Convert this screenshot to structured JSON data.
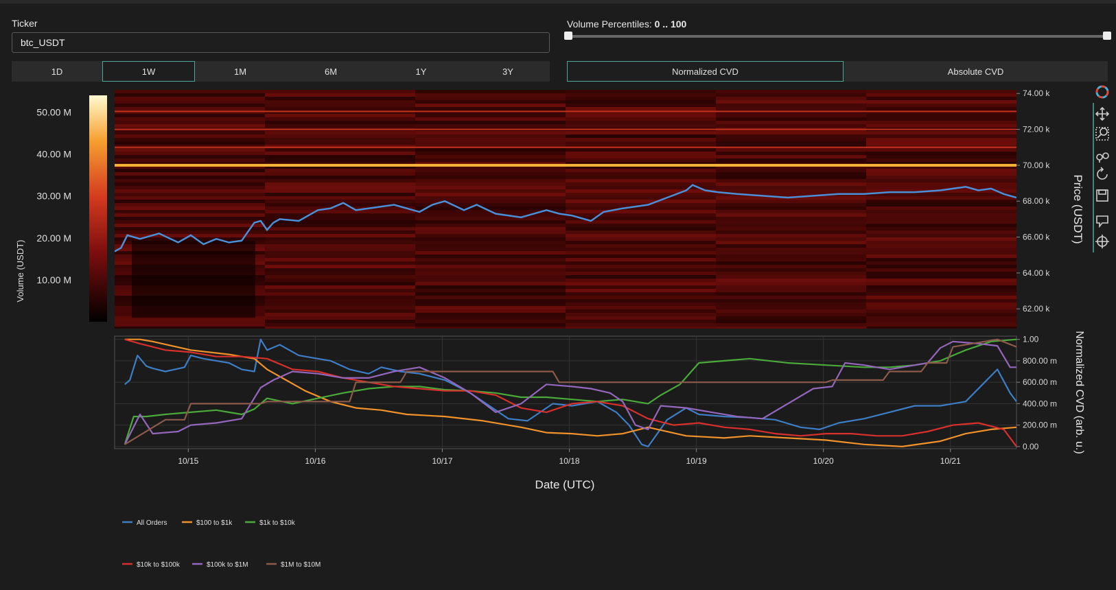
{
  "controls": {
    "ticker_label": "Ticker",
    "ticker_value": "btc_USDT",
    "percentile_label": "Volume Percentiles:",
    "percentile_value": "0 .. 100",
    "percentile_range": [
      0,
      100
    ],
    "timeframes": [
      "1D",
      "1W",
      "1M",
      "6M",
      "1Y",
      "3Y"
    ],
    "active_timeframe": "1W",
    "cvd_modes": [
      "Normalized CVD",
      "Absolute CVD"
    ],
    "active_cvd_mode": "Normalized CVD"
  },
  "modebar": [
    "plotly-logo-icon",
    "pan-icon",
    "zoom-icon",
    "compare-hover-icon",
    "reset-icon",
    "download-icon",
    "hover-closest-icon",
    "spike-lines-icon"
  ],
  "chart_data": [
    {
      "type": "heatmap",
      "description_of_scale": "colorscale black-red-orange-yellow",
      "colorbar": {
        "label": "Volume (USDT)",
        "ticks": [
          "10.00 M",
          "20.00 M",
          "30.00 M",
          "40.00 M",
          "50.00 M"
        ],
        "tick_values": [
          10,
          20,
          30,
          40,
          50
        ],
        "range": [
          0,
          54
        ]
      },
      "ylabel": "Price (USDT)",
      "yticks": [
        "62.00 k",
        "64.00 k",
        "66.00 k",
        "68.00 k",
        "70.00 k",
        "72.00 k",
        "74.00 k"
      ],
      "ytick_values": [
        62000,
        64000,
        66000,
        68000,
        70000,
        72000,
        74000
      ],
      "ylim": [
        60900,
        74200
      ],
      "xlim": [
        0,
        7.1
      ],
      "hot_price_levels": [
        70000,
        72000,
        71000,
        73000
      ],
      "price_series": {
        "name": "Price",
        "color": "#4a90d9",
        "t": [
          0.0,
          0.05,
          0.1,
          0.2,
          0.35,
          0.5,
          0.6,
          0.7,
          0.8,
          0.9,
          1.0,
          1.05,
          1.1,
          1.15,
          1.2,
          1.25,
          1.3,
          1.45,
          1.6,
          1.7,
          1.8,
          1.9,
          2.0,
          2.1,
          2.2,
          2.4,
          2.5,
          2.6,
          2.75,
          2.85,
          3.0,
          3.2,
          3.4,
          3.5,
          3.6,
          3.75,
          3.85,
          4.0,
          4.2,
          4.35,
          4.5,
          4.55,
          4.65,
          4.75,
          4.9,
          5.1,
          5.3,
          5.5,
          5.7,
          5.9,
          6.1,
          6.3,
          6.5,
          6.6,
          6.7,
          6.8,
          6.9,
          7.0,
          7.1
        ],
        "price": [
          65200,
          65400,
          66100,
          65900,
          66200,
          65700,
          66100,
          65600,
          65900,
          65700,
          65800,
          66300,
          66800,
          66900,
          66400,
          66800,
          67000,
          66900,
          67500,
          67600,
          67900,
          67500,
          67600,
          67700,
          67800,
          67400,
          67800,
          68000,
          67500,
          67800,
          67300,
          67100,
          67500,
          67300,
          67200,
          66900,
          67400,
          67600,
          67800,
          68200,
          68600,
          68900,
          68600,
          68500,
          68400,
          68300,
          68200,
          68300,
          68400,
          68400,
          68500,
          68500,
          68600,
          68700,
          68800,
          68600,
          68700,
          68400,
          68200
        ]
      }
    },
    {
      "type": "line",
      "xlabel": "Date (UTC)",
      "ylabel": "Normalized CVD (arb. u.)",
      "xticks": [
        "10/15",
        "10/16",
        "10/17",
        "10/18",
        "10/19",
        "10/20",
        "10/21"
      ],
      "xtick_values": [
        0.58,
        1.58,
        2.58,
        3.58,
        4.58,
        5.58,
        6.58
      ],
      "xlim": [
        0,
        7.1
      ],
      "yticks": [
        "0.00",
        "200.00 m",
        "400.00 m",
        "600.00 m",
        "800.00 m",
        "1.00"
      ],
      "ytick_values": [
        0,
        0.2,
        0.4,
        0.6,
        0.8,
        1.0
      ],
      "ylim": [
        -0.02,
        1.03
      ],
      "series": [
        {
          "name": "All Orders",
          "color": "#3d7ec6",
          "x": [
            0.08,
            0.12,
            0.18,
            0.25,
            0.3,
            0.4,
            0.55,
            0.6,
            0.7,
            0.9,
            1.0,
            1.1,
            1.15,
            1.2,
            1.3,
            1.45,
            1.6,
            1.7,
            1.85,
            2.0,
            2.1,
            2.25,
            2.4,
            2.6,
            2.8,
            3.0,
            3.1,
            3.25,
            3.45,
            3.6,
            3.8,
            3.95,
            4.05,
            4.15,
            4.2,
            4.35,
            4.5,
            4.6,
            4.8,
            5.0,
            5.2,
            5.4,
            5.55,
            5.7,
            5.9,
            6.1,
            6.3,
            6.5,
            6.7,
            6.85,
            6.95,
            7.05,
            7.1
          ],
          "y": [
            0.58,
            0.62,
            0.85,
            0.75,
            0.73,
            0.7,
            0.74,
            0.85,
            0.82,
            0.78,
            0.72,
            0.7,
            1.0,
            0.9,
            0.95,
            0.85,
            0.82,
            0.8,
            0.72,
            0.68,
            0.74,
            0.7,
            0.68,
            0.62,
            0.5,
            0.34,
            0.26,
            0.24,
            0.4,
            0.38,
            0.42,
            0.32,
            0.2,
            0.02,
            0.0,
            0.25,
            0.36,
            0.3,
            0.28,
            0.27,
            0.25,
            0.18,
            0.16,
            0.22,
            0.26,
            0.32,
            0.38,
            0.38,
            0.42,
            0.6,
            0.72,
            0.5,
            0.42
          ]
        },
        {
          "name": "$100 to $1k",
          "color": "#f2922a",
          "x": [
            0.08,
            0.2,
            0.3,
            0.6,
            0.9,
            1.1,
            1.2,
            1.35,
            1.5,
            1.7,
            1.9,
            2.1,
            2.3,
            2.6,
            2.9,
            3.2,
            3.4,
            3.6,
            3.8,
            4.0,
            4.2,
            4.5,
            4.8,
            5.0,
            5.3,
            5.6,
            5.9,
            6.2,
            6.5,
            6.7,
            6.9,
            7.1
          ],
          "y": [
            1.0,
            1.0,
            0.98,
            0.9,
            0.86,
            0.82,
            0.72,
            0.62,
            0.52,
            0.42,
            0.36,
            0.34,
            0.3,
            0.28,
            0.24,
            0.18,
            0.13,
            0.12,
            0.1,
            0.12,
            0.18,
            0.1,
            0.08,
            0.1,
            0.08,
            0.06,
            0.02,
            0.0,
            0.05,
            0.12,
            0.16,
            0.18
          ]
        },
        {
          "name": "$1k to $10k",
          "color": "#4aab3a",
          "x": [
            0.08,
            0.15,
            0.25,
            0.4,
            0.6,
            0.8,
            1.0,
            1.1,
            1.2,
            1.4,
            1.6,
            1.8,
            2.0,
            2.2,
            2.4,
            2.6,
            2.8,
            3.0,
            3.2,
            3.4,
            3.6,
            3.8,
            4.0,
            4.2,
            4.3,
            4.45,
            4.6,
            4.8,
            5.0,
            5.3,
            5.6,
            5.9,
            6.1,
            6.3,
            6.5,
            6.7,
            6.9,
            7.1
          ],
          "y": [
            0.02,
            0.28,
            0.28,
            0.3,
            0.32,
            0.34,
            0.3,
            0.35,
            0.45,
            0.4,
            0.45,
            0.5,
            0.54,
            0.56,
            0.56,
            0.53,
            0.52,
            0.5,
            0.46,
            0.46,
            0.44,
            0.42,
            0.44,
            0.4,
            0.48,
            0.58,
            0.78,
            0.8,
            0.82,
            0.78,
            0.76,
            0.74,
            0.74,
            0.76,
            0.8,
            0.9,
            0.98,
            1.0
          ]
        },
        {
          "name": "$10k to $100k",
          "color": "#d9302c",
          "x": [
            0.08,
            0.2,
            0.4,
            0.6,
            0.8,
            1.0,
            1.2,
            1.4,
            1.6,
            1.8,
            2.0,
            2.2,
            2.4,
            2.6,
            2.8,
            3.0,
            3.2,
            3.4,
            3.6,
            3.8,
            4.0,
            4.2,
            4.4,
            4.6,
            4.8,
            5.0,
            5.2,
            5.4,
            5.6,
            5.8,
            6.0,
            6.2,
            6.4,
            6.6,
            6.8,
            7.0,
            7.1
          ],
          "y": [
            1.0,
            0.96,
            0.9,
            0.88,
            0.84,
            0.84,
            0.82,
            0.72,
            0.7,
            0.64,
            0.6,
            0.56,
            0.54,
            0.52,
            0.52,
            0.48,
            0.36,
            0.32,
            0.4,
            0.42,
            0.38,
            0.26,
            0.2,
            0.22,
            0.18,
            0.16,
            0.12,
            0.1,
            0.12,
            0.12,
            0.1,
            0.1,
            0.14,
            0.2,
            0.22,
            0.16,
            0.0
          ]
        },
        {
          "name": "$100k to $1M",
          "color": "#9467bd",
          "x": [
            0.08,
            0.2,
            0.3,
            0.5,
            0.6,
            0.8,
            1.0,
            1.15,
            1.25,
            1.4,
            1.6,
            1.8,
            2.0,
            2.2,
            2.4,
            2.6,
            2.8,
            3.0,
            3.2,
            3.4,
            3.6,
            3.75,
            3.9,
            4.0,
            4.1,
            4.2,
            4.3,
            4.5,
            4.7,
            4.9,
            5.1,
            5.3,
            5.5,
            5.65,
            5.75,
            5.9,
            6.1,
            6.3,
            6.4,
            6.5,
            6.6,
            6.8,
            6.95,
            7.05,
            7.1
          ],
          "y": [
            0.02,
            0.3,
            0.12,
            0.14,
            0.2,
            0.22,
            0.26,
            0.55,
            0.62,
            0.7,
            0.68,
            0.64,
            0.64,
            0.7,
            0.74,
            0.64,
            0.5,
            0.32,
            0.4,
            0.58,
            0.56,
            0.54,
            0.5,
            0.42,
            0.2,
            0.16,
            0.38,
            0.36,
            0.32,
            0.28,
            0.26,
            0.4,
            0.54,
            0.56,
            0.78,
            0.76,
            0.72,
            0.76,
            0.78,
            0.92,
            0.98,
            0.96,
            0.94,
            0.74,
            0.74
          ]
        },
        {
          "name": "$1M to $10M",
          "color": "#8c5b4a",
          "x": [
            0.08,
            0.4,
            0.55,
            0.6,
            1.15,
            1.2,
            1.85,
            1.9,
            2.25,
            2.3,
            2.85,
            2.9,
            3.45,
            3.5,
            4.75,
            4.8,
            5.6,
            5.65,
            6.05,
            6.1,
            6.35,
            6.4,
            6.55,
            6.6,
            6.95,
            7.1
          ],
          "y": [
            0.02,
            0.25,
            0.25,
            0.4,
            0.4,
            0.42,
            0.42,
            0.6,
            0.6,
            0.7,
            0.7,
            0.7,
            0.7,
            0.6,
            0.6,
            0.6,
            0.6,
            0.62,
            0.62,
            0.7,
            0.7,
            0.78,
            0.78,
            0.93,
            1.0,
            0.93
          ]
        }
      ],
      "legend": {
        "placement": "bottom-left"
      }
    }
  ]
}
